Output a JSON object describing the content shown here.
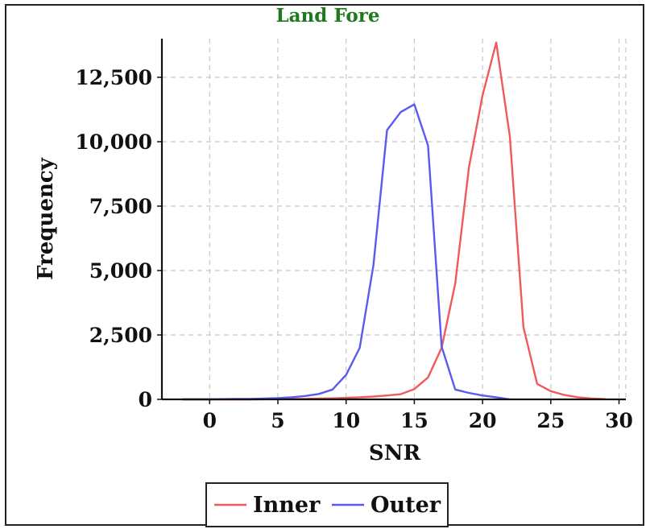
{
  "chart_data": {
    "type": "line",
    "title": "Land Fore",
    "xlabel": "SNR",
    "ylabel": "Frequency",
    "xlim": [
      -3.5,
      30.5
    ],
    "ylim": [
      0,
      14000
    ],
    "xticks": [
      0,
      5,
      10,
      15,
      20,
      25,
      30
    ],
    "xtick_labels": [
      "0",
      "5",
      "10",
      "15",
      "20",
      "25",
      "30"
    ],
    "yticks": [
      0,
      2500,
      5000,
      7500,
      10000,
      12500
    ],
    "ytick_labels": [
      "0",
      "2,500",
      "5,000",
      "7,500",
      "10,000",
      "12,500"
    ],
    "grid": true,
    "legend_position": "bottom",
    "series": [
      {
        "name": "Inner",
        "color": "#ef5a5a",
        "x": [
          -2,
          -1,
          0,
          1,
          2,
          3,
          4,
          5,
          6,
          7,
          8,
          9,
          10,
          11,
          12,
          13,
          14,
          15,
          16,
          17,
          18,
          19,
          20,
          21,
          22,
          23,
          24,
          25,
          26,
          27,
          28,
          29
        ],
        "y": [
          0,
          0,
          0,
          0,
          0,
          0,
          5,
          10,
          15,
          20,
          30,
          40,
          60,
          80,
          110,
          150,
          200,
          400,
          850,
          2000,
          4500,
          9000,
          11800,
          13850,
          10200,
          2800,
          600,
          320,
          170,
          80,
          30,
          10
        ]
      },
      {
        "name": "Outer",
        "color": "#5a5aef",
        "x": [
          -2,
          -1,
          0,
          1,
          2,
          3,
          4,
          5,
          6,
          7,
          8,
          9,
          10,
          11,
          12,
          13,
          14,
          15,
          16,
          17,
          18,
          19,
          20,
          21,
          22
        ],
        "y": [
          0,
          0,
          0,
          10,
          15,
          20,
          30,
          50,
          80,
          130,
          210,
          380,
          950,
          2000,
          5200,
          10450,
          11150,
          11450,
          9850,
          2050,
          380,
          250,
          150,
          80,
          0
        ]
      }
    ]
  }
}
